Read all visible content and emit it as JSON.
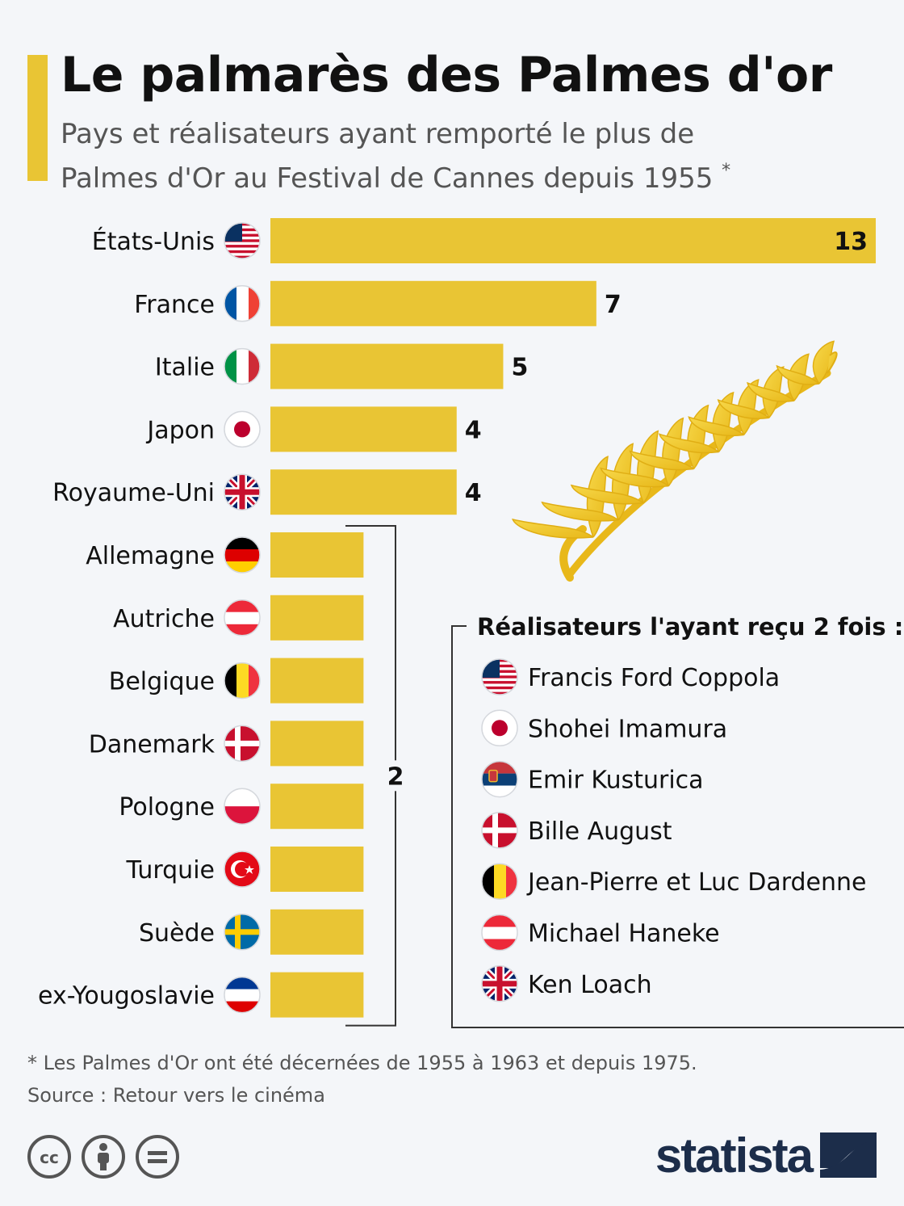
{
  "header": {
    "title": "Le palmarès des Palmes d'or",
    "subtitle_line1": "Pays et réalisateurs ayant remporté le plus de",
    "subtitle_line2": "Palmes d'Or au Festival de Cannes depuis 1955",
    "subtitle_marker": "*"
  },
  "colors": {
    "bar": "#e9c534",
    "accent": "#e9c534",
    "text": "#111111",
    "muted": "#555555",
    "brand": "#1c2d4a"
  },
  "chart_data": {
    "type": "bar",
    "orientation": "horizontal",
    "categories": [
      "États-Unis",
      "France",
      "Italie",
      "Japon",
      "Royaume-Uni",
      "Allemagne",
      "Autriche",
      "Belgique",
      "Danemark",
      "Pologne",
      "Turquie",
      "Suède",
      "ex-Yougoslavie"
    ],
    "flags": [
      "us",
      "fr",
      "it",
      "jp",
      "gb",
      "de",
      "at",
      "be",
      "dk",
      "pl",
      "tr",
      "se",
      "yu"
    ],
    "values": [
      13,
      7,
      5,
      4,
      4,
      2,
      2,
      2,
      2,
      2,
      2,
      2,
      2
    ],
    "value_labels": [
      "13",
      "7",
      "5",
      "4",
      "4",
      "",
      "",
      "",
      "",
      "",
      "",
      "",
      ""
    ],
    "group_label": {
      "value": "2",
      "from_index": 5,
      "to_index": 12
    },
    "xlim": [
      0,
      13
    ]
  },
  "directors": {
    "title": "Réalisateurs l'ayant reçu 2 fois :",
    "items": [
      {
        "name": "Francis Ford Coppola",
        "flag": "us"
      },
      {
        "name": "Shohei Imamura",
        "flag": "jp"
      },
      {
        "name": "Emir Kusturica",
        "flag": "rs"
      },
      {
        "name": "Bille August",
        "flag": "dk"
      },
      {
        "name": "Jean-Pierre et Luc Dardenne",
        "flag": "be"
      },
      {
        "name": "Michael Haneke",
        "flag": "at"
      },
      {
        "name": "Ken Loach",
        "flag": "gb"
      }
    ]
  },
  "footer": {
    "note": "* Les Palmes d'Or ont été décernées de 1955 à 1963 et depuis 1975.",
    "source": "Source : Retour vers le cinéma",
    "brand": "statista",
    "license_icons": [
      "cc-icon",
      "attribution-icon",
      "no-derivatives-icon"
    ]
  }
}
